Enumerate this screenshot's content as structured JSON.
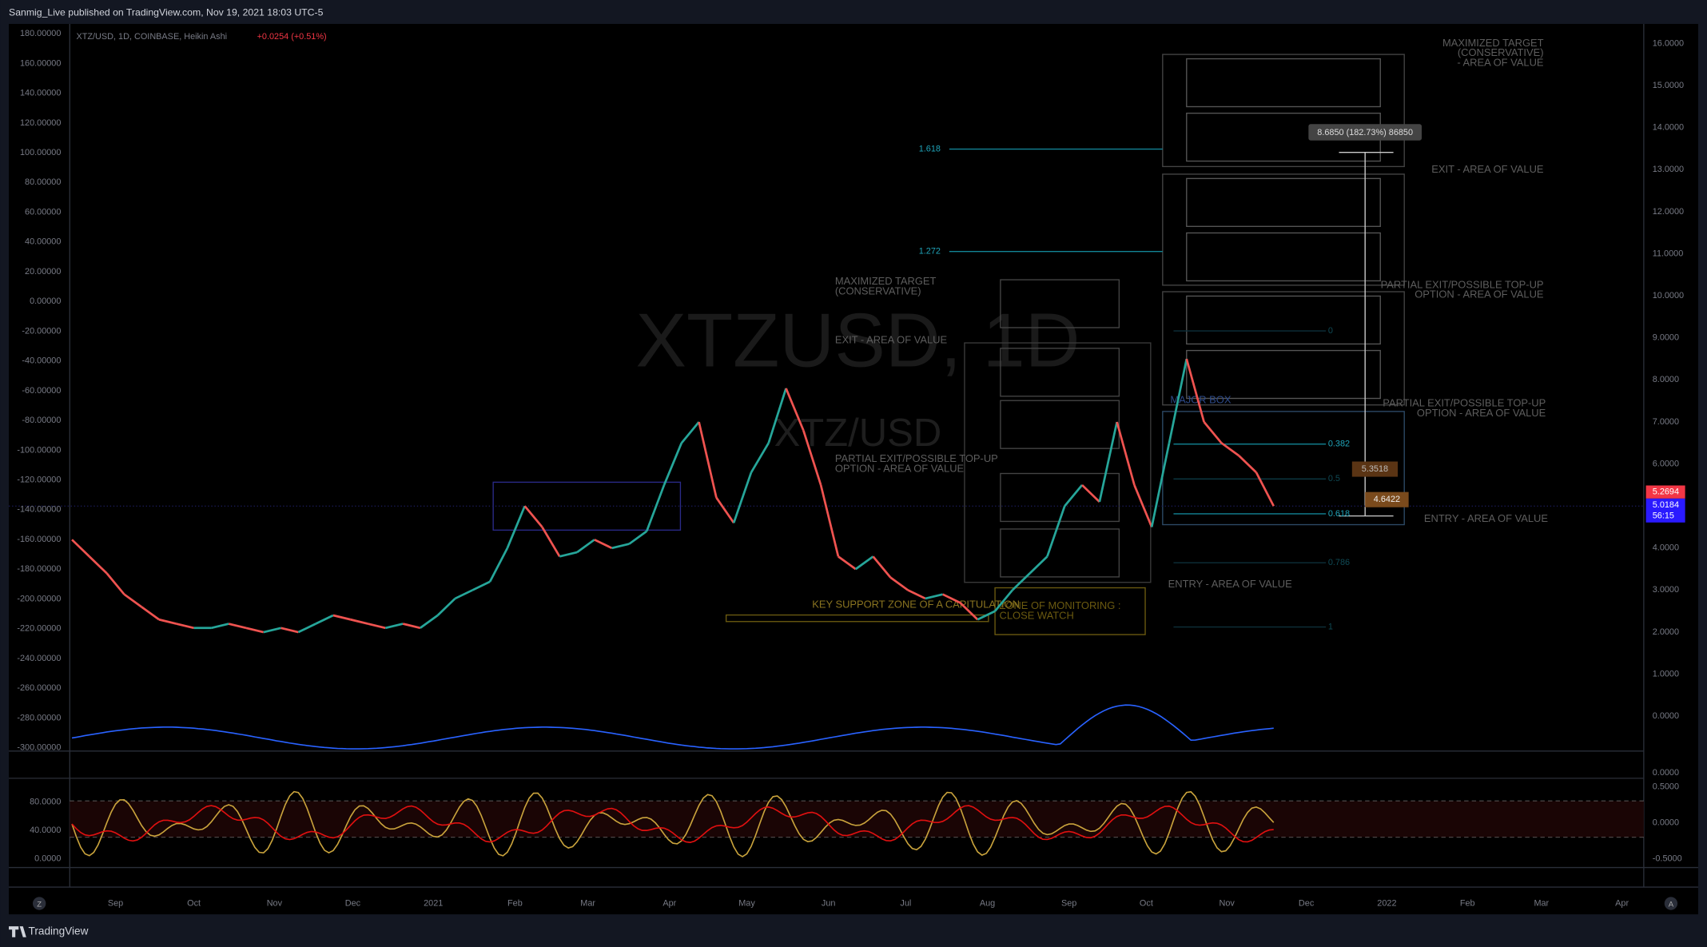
{
  "header": {
    "title": "Sanmig_Live published on TradingView.com, Nov 19, 2021 18:03 UTC-5"
  },
  "legend": {
    "symbol": "XTZ/USD, 1D, COINBASE, Heikin Ashi",
    "change": "+0.0254 (+0.51%)"
  },
  "watermark": {
    "big": "XTZUSD, 1D",
    "small": "XTZ/USD"
  },
  "left_axis": [
    "180.00000",
    "160.00000",
    "140.00000",
    "120.00000",
    "100.00000",
    "80.00000",
    "60.00000",
    "40.00000",
    "20.00000",
    "0.00000",
    "-20.00000",
    "-40.00000",
    "-60.00000",
    "-80.00000",
    "-100.00000",
    "-120.00000",
    "-140.00000",
    "-160.00000",
    "-180.00000",
    "-200.00000",
    "-220.00000",
    "-240.00000",
    "-260.00000",
    "-280.00000",
    "-300.00000"
  ],
  "right_axis": [
    "16.0000",
    "15.0000",
    "14.0000",
    "13.0000",
    "12.0000",
    "11.0000",
    "10.0000",
    "9.0000",
    "8.0000",
    "7.0000",
    "6.0000",
    "5.0000",
    "4.0000",
    "3.0000",
    "2.0000",
    "1.0000",
    "0.0000"
  ],
  "indicator_left_axis": [
    "80.0000",
    "40.0000",
    "0.0000"
  ],
  "indicator_right_axis": [
    "0.0000",
    "0.5000",
    "0.0000",
    "-0.5000"
  ],
  "price_tags": [
    "5.2694",
    "5.0184",
    "56:15"
  ],
  "time_axis": [
    "Sep",
    "Oct",
    "Nov",
    "Dec",
    "2021",
    "Feb",
    "Mar",
    "Apr",
    "May",
    "Jun",
    "Jul",
    "Aug",
    "Sep",
    "Oct",
    "Nov",
    "Dec",
    "2022",
    "Feb",
    "Mar",
    "Apr"
  ],
  "price_path": [
    4.2,
    3.8,
    3.4,
    2.9,
    2.6,
    2.3,
    2.2,
    2.1,
    2.1,
    2.2,
    2.1,
    2.0,
    2.1,
    2.0,
    2.2,
    2.4,
    2.3,
    2.2,
    2.1,
    2.2,
    2.1,
    2.4,
    2.8,
    3.0,
    3.2,
    4.0,
    5.0,
    4.5,
    3.8,
    3.9,
    4.2,
    4.0,
    4.1,
    4.4,
    5.5,
    6.5,
    7.0,
    5.2,
    4.6,
    5.8,
    6.5,
    7.8,
    6.8,
    5.5,
    3.8,
    3.5,
    3.8,
    3.3,
    3.0,
    2.8,
    2.9,
    2.7,
    2.3,
    2.5,
    3.0,
    3.4,
    3.8,
    5.0,
    5.5,
    5.1,
    7.0,
    5.5,
    4.5,
    6.5,
    8.5,
    7.0,
    6.5,
    6.2,
    5.8,
    5.0
  ],
  "annotations": {
    "right_max": [
      "MAXIMIZED TARGET",
      "(CONSERVATIVE)",
      "- AREA OF VALUE"
    ],
    "right_exit": "EXIT - AREA OF VALUE",
    "right_partial_1": [
      "PARTIAL EXIT/POSSIBLE TOP-UP",
      "OPTION - AREA OF VALUE"
    ],
    "right_partial_2": [
      "PARTIAL EXIT/POSSIBLE TOP-UP",
      "OPTION - AREA OF VALUE"
    ],
    "right_entry": "ENTRY - AREA OF VALUE",
    "left_max": [
      "MAXIMIZED TARGET",
      "(CONSERVATIVE)"
    ],
    "left_exit": "EXIT - AREA OF VALUE",
    "left_partial": [
      "PARTIAL EXIT/POSSIBLE TOP-UP",
      "OPTION - AREA OF VALUE"
    ],
    "left_entry": "ENTRY - AREA OF VALUE",
    "key_support": "KEY SUPPORT ZONE OF A  CAPITULATION",
    "monitoring": [
      "ZONE OF MONITORING :",
      "CLOSE WATCH"
    ],
    "major_box": "MAJOR BOX",
    "measure": "8.6850 (182.73%) 86850",
    "label_a": "5.3518",
    "label_b": "4.6422"
  },
  "fib": [
    "1.618",
    "1.272",
    "0",
    "0.382",
    "0.5",
    "0.618",
    "0.786",
    "1"
  ],
  "footer": {
    "brand": "TradingView"
  },
  "corner_buttons": [
    "Z",
    "A"
  ]
}
